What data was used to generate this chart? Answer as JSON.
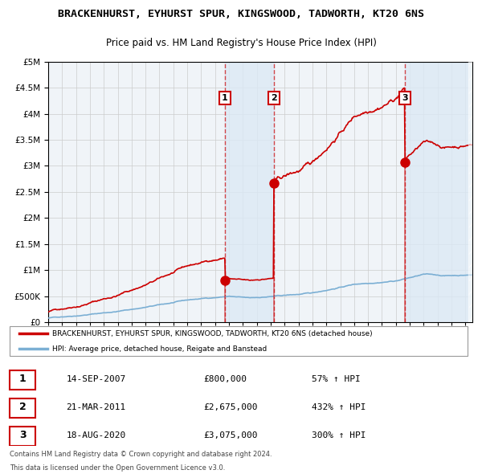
{
  "title": "BRACKENHURST, EYHURST SPUR, KINGSWOOD, TADWORTH, KT20 6NS",
  "subtitle": "Price paid vs. HM Land Registry's House Price Index (HPI)",
  "hpi_label": "HPI: Average price, detached house, Reigate and Banstead",
  "property_label": "BRACKENHURST, EYHURST SPUR, KINGSWOOD, TADWORTH, KT20 6NS (detached house",
  "footer1": "Contains HM Land Registry data © Crown copyright and database right 2024.",
  "footer2": "This data is licensed under the Open Government Licence v3.0.",
  "transactions": [
    {
      "num": 1,
      "date": "14-SEP-2007",
      "price": 800000,
      "hpi_pct": "57% ↑ HPI",
      "year": 2007.71
    },
    {
      "num": 2,
      "date": "21-MAR-2011",
      "price": 2675000,
      "hpi_pct": "432% ↑ HPI",
      "year": 2011.22
    },
    {
      "num": 3,
      "date": "18-AUG-2020",
      "price": 3075000,
      "hpi_pct": "300% ↑ HPI",
      "year": 2020.63
    }
  ],
  "ylim": [
    0,
    5000000
  ],
  "xlim_start": 1995.0,
  "xlim_end": 2025.5,
  "hpi_color": "#7bafd4",
  "price_color": "#cc0000",
  "shade_color": "#dce9f5",
  "background_color": "#f0f4f8",
  "plot_bg": "#f5f5f5",
  "grid_color": "#cccccc"
}
